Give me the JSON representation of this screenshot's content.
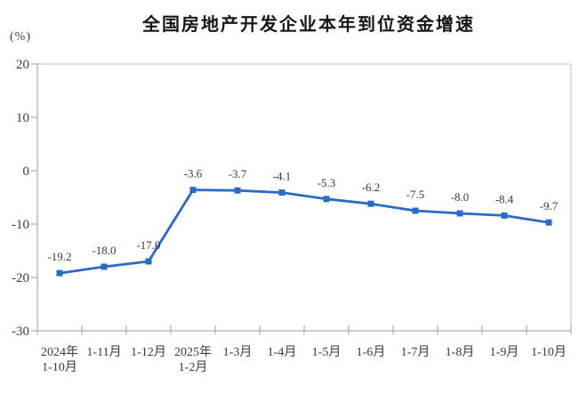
{
  "chart_data": {
    "type": "line",
    "title": "全国房地产开发企业本年到位资金增速",
    "ylabel": "(%)",
    "xlabel": "",
    "categories": [
      [
        "2024年",
        "1-10月"
      ],
      [
        "1-11月"
      ],
      [
        "1-12月"
      ],
      [
        "2025年",
        "1-2月"
      ],
      [
        "1-3月"
      ],
      [
        "1-4月"
      ],
      [
        "1-5月"
      ],
      [
        "1-6月"
      ],
      [
        "1-7月"
      ],
      [
        "1-8月"
      ],
      [
        "1-9月"
      ],
      [
        "1-10月"
      ]
    ],
    "values": [
      -19.2,
      -18.0,
      -17.0,
      -3.6,
      -3.7,
      -4.1,
      -5.3,
      -6.2,
      -7.5,
      -8.0,
      -8.4,
      -9.7
    ],
    "data_labels": [
      "-19.2",
      "-18.0",
      "-17.0",
      "-3.6",
      "-3.7",
      "-4.1",
      "-5.3",
      "-6.2",
      "-7.5",
      "-8.0",
      "-8.4",
      "-9.7"
    ],
    "ylim": [
      -30,
      20
    ],
    "yticks": [
      20,
      10,
      0,
      -10,
      -20,
      -30
    ],
    "grid": false,
    "legend": "none",
    "marker": "square",
    "line_color": "#2a6bc5",
    "marker_color": "#2a6bc5"
  },
  "colors": {
    "background": "#ffffff",
    "title_text": "#161616",
    "axis_line": "#9b9b9b",
    "frame_line": "#c3c3c3",
    "tick_text": "#3d3d3d",
    "data_label_text": "#3a3a3a"
  }
}
